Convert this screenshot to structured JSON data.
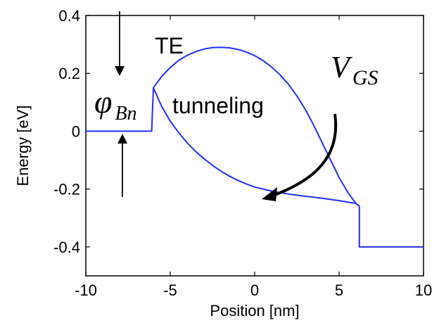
{
  "chart_data": {
    "type": "line",
    "xlabel": "Position [nm]",
    "ylabel": "Energy [eV]",
    "xlim": [
      -10,
      10
    ],
    "ylim": [
      -0.5,
      0.4
    ],
    "xticks": [
      "-10",
      "-5",
      "0",
      "5",
      "10"
    ],
    "yticks": [
      "0.4",
      "0.2",
      "0",
      "-0.2",
      "-0.4"
    ],
    "series_color": "#1f2fff",
    "series": [
      {
        "x": [
          -10,
          -6.1,
          -6.0,
          -5.5,
          -5.0,
          -4.5,
          -4.0,
          -3.5,
          -3.0,
          -2.5,
          -2.0,
          -1.5,
          -1.0,
          -0.5,
          0.0,
          0.5,
          1.0,
          1.5,
          2.0,
          2.5,
          3.0,
          3.5,
          4.0,
          4.5,
          5.0,
          5.5,
          6.0,
          6.2,
          6.2,
          10
        ],
        "y": [
          0.0,
          0.0,
          0.15,
          0.19,
          0.22,
          0.245,
          0.262,
          0.275,
          0.284,
          0.289,
          0.29,
          0.288,
          0.283,
          0.274,
          0.261,
          0.244,
          0.222,
          0.195,
          0.162,
          0.122,
          0.075,
          0.02,
          -0.04,
          -0.1,
          -0.16,
          -0.21,
          -0.25,
          -0.26,
          -0.4,
          -0.4
        ]
      },
      {
        "x": [
          -6.0,
          -5.5,
          -5.0,
          -4.5,
          -4.0,
          -3.5,
          -3.0,
          -2.5,
          -2.0,
          -1.5,
          -1.0,
          -0.5,
          0.0,
          1.0,
          2.0,
          3.0,
          4.0,
          5.0,
          6.0,
          6.2
        ],
        "y": [
          0.15,
          0.085,
          0.035,
          -0.005,
          -0.04,
          -0.07,
          -0.095,
          -0.118,
          -0.138,
          -0.155,
          -0.17,
          -0.182,
          -0.193,
          -0.207,
          -0.217,
          -0.225,
          -0.232,
          -0.24,
          -0.25,
          -0.26
        ]
      }
    ],
    "annotations": {
      "te": "TE",
      "tunneling": "tunneling",
      "phi_main": "φ",
      "phi_sub": "Bn",
      "vgs_main": "V",
      "vgs_sub": "GS"
    }
  }
}
